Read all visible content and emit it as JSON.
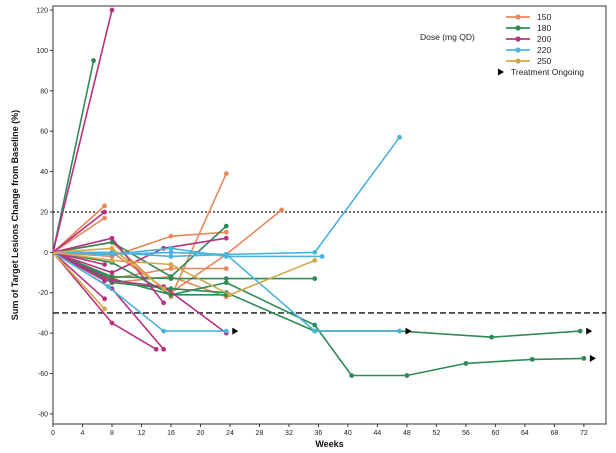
{
  "chart_data": {
    "type": "line",
    "xlabel": "Weeks",
    "ylabel": "Sum of Target Lesions Change from Baseline (%)",
    "xlim": [
      0,
      75
    ],
    "ylim": [
      -85,
      122
    ],
    "xticks": [
      0,
      4,
      8,
      12,
      16,
      20,
      24,
      28,
      32,
      36,
      40,
      44,
      48,
      52,
      56,
      60,
      64,
      68,
      72
    ],
    "yticks": [
      -80,
      -60,
      -40,
      -20,
      0,
      20,
      40,
      60,
      80,
      100,
      120
    ],
    "reference_lines": [
      {
        "y": 20,
        "style": "dotted"
      },
      {
        "y": -30,
        "style": "dashed"
      }
    ],
    "legend": {
      "title": "Dose (mg QD)",
      "placement": "top-right",
      "ongoing_label": "Treatment Ongoing"
    },
    "colors": {
      "150": "#e8875a",
      "180": "#2e8b57",
      "200": "#b83280",
      "220": "#4ab3dc",
      "250": "#d4a84a"
    },
    "series": [
      {
        "name": "150",
        "lines": [
          {
            "points": [
              [
                0,
                0
              ],
              [
                7,
                23
              ]
            ]
          },
          {
            "points": [
              [
                0,
                0
              ],
              [
                7,
                17
              ]
            ]
          },
          {
            "points": [
              [
                0,
                0
              ],
              [
                8,
                -13
              ],
              [
                16,
                -8
              ],
              [
                23.5,
                -8
              ]
            ]
          },
          {
            "points": [
              [
                0,
                0
              ],
              [
                8,
                5
              ],
              [
                16,
                -22
              ],
              [
                23.5,
                39
              ]
            ]
          },
          {
            "points": [
              [
                0,
                0
              ],
              [
                8,
                -2
              ],
              [
                16,
                8
              ],
              [
                23.5,
                10
              ]
            ]
          },
          {
            "points": [
              [
                0,
                0
              ],
              [
                8,
                -15
              ],
              [
                16,
                -12
              ],
              [
                23.5,
                -22
              ]
            ]
          },
          {
            "points": [
              [
                0,
                0
              ],
              [
                8,
                0
              ],
              [
                16,
                -20
              ],
              [
                23.5,
                -1
              ],
              [
                31,
                21
              ]
            ]
          }
        ]
      },
      {
        "name": "180",
        "lines": [
          {
            "points": [
              [
                0,
                0
              ],
              [
                5.5,
                95
              ]
            ]
          },
          {
            "points": [
              [
                0,
                0
              ],
              [
                8,
                5
              ],
              [
                16,
                -12
              ],
              [
                23.5,
                13
              ]
            ]
          },
          {
            "points": [
              [
                0,
                0
              ],
              [
                8,
                -13
              ],
              [
                16,
                -21
              ],
              [
                23.5,
                -21
              ]
            ]
          },
          {
            "points": [
              [
                0,
                0
              ],
              [
                8,
                -5
              ],
              [
                16,
                -21
              ],
              [
                23.5,
                -15
              ],
              [
                35.5,
                -36
              ],
              [
                40.5,
                -61
              ],
              [
                48,
                -61
              ],
              [
                56,
                -55
              ],
              [
                65,
                -53
              ],
              [
                72,
                -52.5
              ]
            ],
            "ongoing": true
          },
          {
            "points": [
              [
                0,
                0
              ],
              [
                8,
                -12
              ],
              [
                16,
                -13
              ],
              [
                23.5,
                -13
              ],
              [
                35.5,
                -13
              ]
            ]
          },
          {
            "points": [
              [
                0,
                0
              ],
              [
                8,
                -15
              ],
              [
                16,
                -18
              ],
              [
                23.5,
                -20
              ],
              [
                35.5,
                -39
              ],
              [
                47,
                -39
              ],
              [
                59.5,
                -42
              ],
              [
                71.5,
                -39
              ]
            ],
            "ongoing": true
          }
        ]
      },
      {
        "name": "200",
        "lines": [
          {
            "points": [
              [
                0,
                0
              ],
              [
                8,
                120
              ]
            ]
          },
          {
            "points": [
              [
                0,
                0
              ],
              [
                7,
                20
              ]
            ]
          },
          {
            "points": [
              [
                0,
                0
              ],
              [
                7,
                -6
              ]
            ]
          },
          {
            "points": [
              [
                0,
                0
              ],
              [
                7,
                -14
              ]
            ]
          },
          {
            "points": [
              [
                0,
                0
              ],
              [
                7,
                -23
              ]
            ]
          },
          {
            "points": [
              [
                0,
                0
              ],
              [
                8,
                -35
              ],
              [
                14,
                -48
              ]
            ]
          },
          {
            "points": [
              [
                0,
                0
              ],
              [
                8,
                -18
              ],
              [
                15,
                -48
              ]
            ]
          },
          {
            "points": [
              [
                0,
                0
              ],
              [
                8,
                7
              ],
              [
                15,
                -25
              ]
            ]
          },
          {
            "points": [
              [
                0,
                0
              ],
              [
                8,
                -10
              ],
              [
                15,
                2
              ],
              [
                23.5,
                7
              ]
            ]
          },
          {
            "points": [
              [
                0,
                0
              ],
              [
                8,
                -14
              ],
              [
                15,
                -17
              ],
              [
                23.5,
                -40
              ]
            ]
          }
        ]
      },
      {
        "name": "220",
        "lines": [
          {
            "points": [
              [
                0,
                0
              ],
              [
                7.5,
                -17
              ],
              [
                15,
                -39
              ],
              [
                23.5,
                -39
              ]
            ],
            "ongoing": true
          },
          {
            "points": [
              [
                0,
                0
              ],
              [
                8,
                -1
              ],
              [
                16,
                0
              ],
              [
                23.5,
                -1
              ],
              [
                35.5,
                0
              ],
              [
                47,
                57
              ]
            ]
          },
          {
            "points": [
              [
                0,
                0
              ],
              [
                8,
                -1
              ],
              [
                16,
                2
              ],
              [
                23.5,
                -2
              ],
              [
                36.5,
                -2
              ]
            ]
          },
          {
            "points": [
              [
                0,
                0
              ],
              [
                8,
                0
              ],
              [
                16,
                -2
              ],
              [
                23.5,
                -1
              ],
              [
                35.5,
                -39
              ],
              [
                47,
                -39
              ]
            ],
            "ongoing": true
          }
        ]
      },
      {
        "name": "250",
        "lines": [
          {
            "points": [
              [
                0,
                0
              ],
              [
                7,
                -28
              ]
            ]
          },
          {
            "points": [
              [
                0,
                0
              ],
              [
                8,
                2
              ],
              [
                15,
                -18
              ]
            ]
          },
          {
            "points": [
              [
                0,
                0
              ],
              [
                8,
                -4
              ],
              [
                16,
                -6
              ],
              [
                24,
                -21
              ],
              [
                35.5,
                -4
              ]
            ]
          }
        ]
      }
    ]
  }
}
